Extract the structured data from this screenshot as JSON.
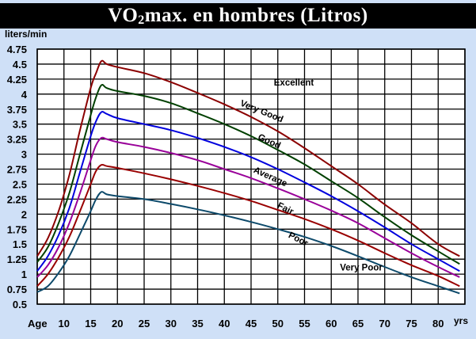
{
  "title": {
    "prefix": "VO",
    "subscript": "2",
    "suffix": "max. en hombres (Litros)"
  },
  "chart_data": {
    "type": "line",
    "title": "VO2max. en hombres (Litros)",
    "ylabel": "liters/min",
    "xlabel_left": "Age",
    "xlabel_right": "yrs",
    "ylim": [
      0.5,
      4.75
    ],
    "xlim": [
      5,
      85
    ],
    "grid": true,
    "x_ticks": [
      10,
      15,
      20,
      25,
      30,
      35,
      40,
      45,
      50,
      55,
      60,
      65,
      70,
      75,
      80
    ],
    "y_ticks": [
      0.5,
      0.75,
      1,
      1.25,
      1.5,
      1.75,
      2,
      2.25,
      2.5,
      2.75,
      3,
      3.25,
      3.5,
      3.75,
      4,
      4.25,
      4.5,
      4.75
    ],
    "y_tick_labels": [
      "0.5",
      "0.75",
      "1",
      "1.25",
      "1.5",
      "1.75",
      "2",
      "2.25",
      "2.5",
      "2.75",
      "3",
      "3.25",
      "3.5",
      "3.75",
      "4",
      "4.25",
      "4.5",
      "4.75"
    ],
    "series": [
      {
        "name": "Excellent",
        "color": "#8b0000",
        "x": [
          5,
          7,
          9,
          11,
          13,
          15,
          16,
          17,
          18,
          20,
          25,
          30,
          35,
          40,
          45,
          50,
          55,
          60,
          65,
          70,
          75,
          80,
          84
        ],
        "y": [
          1.3,
          1.6,
          2.05,
          2.65,
          3.4,
          4.1,
          4.35,
          4.55,
          4.5,
          4.45,
          4.35,
          4.2,
          4.02,
          3.83,
          3.62,
          3.38,
          3.1,
          2.8,
          2.5,
          2.16,
          1.85,
          1.5,
          1.3
        ]
      },
      {
        "name": "Very Good",
        "color": "#004000",
        "x": [
          5,
          7,
          9,
          11,
          13,
          15,
          16,
          17,
          18,
          20,
          25,
          30,
          35,
          40,
          45,
          50,
          55,
          60,
          65,
          70,
          75,
          80,
          84
        ],
        "y": [
          1.2,
          1.45,
          1.85,
          2.35,
          3.0,
          3.65,
          3.95,
          4.15,
          4.1,
          4.05,
          3.97,
          3.85,
          3.68,
          3.5,
          3.3,
          3.07,
          2.83,
          2.55,
          2.27,
          1.95,
          1.65,
          1.38,
          1.17
        ]
      },
      {
        "name": "Good",
        "color": "#0000dd",
        "x": [
          5,
          7,
          9,
          11,
          13,
          15,
          16,
          17,
          18,
          20,
          25,
          30,
          35,
          40,
          45,
          50,
          55,
          60,
          65,
          70,
          75,
          80,
          84
        ],
        "y": [
          1.05,
          1.3,
          1.65,
          2.1,
          2.7,
          3.3,
          3.55,
          3.7,
          3.67,
          3.6,
          3.5,
          3.4,
          3.27,
          3.12,
          2.95,
          2.75,
          2.53,
          2.3,
          2.05,
          1.78,
          1.5,
          1.25,
          1.05
        ]
      },
      {
        "name": "Average",
        "color": "#990099",
        "x": [
          5,
          7,
          9,
          11,
          13,
          15,
          16,
          17,
          18,
          20,
          25,
          30,
          35,
          40,
          45,
          50,
          55,
          60,
          65,
          70,
          75,
          80,
          84
        ],
        "y": [
          0.95,
          1.15,
          1.45,
          1.85,
          2.35,
          2.9,
          3.15,
          3.27,
          3.25,
          3.2,
          3.12,
          3.02,
          2.9,
          2.75,
          2.6,
          2.43,
          2.25,
          2.06,
          1.85,
          1.6,
          1.35,
          1.12,
          0.95
        ]
      },
      {
        "name": "Fair",
        "color": "#990000",
        "x": [
          5,
          7,
          9,
          11,
          13,
          15,
          16,
          17,
          18,
          20,
          25,
          30,
          35,
          40,
          45,
          50,
          55,
          60,
          65,
          70,
          75,
          80,
          84
        ],
        "y": [
          0.8,
          1.0,
          1.28,
          1.62,
          2.05,
          2.5,
          2.72,
          2.82,
          2.8,
          2.77,
          2.68,
          2.58,
          2.47,
          2.35,
          2.22,
          2.07,
          1.92,
          1.75,
          1.56,
          1.35,
          1.15,
          0.97,
          0.8
        ]
      },
      {
        "name": "Poor",
        "color": "#0d4a6b",
        "x": [
          5,
          7,
          9,
          11,
          13,
          15,
          16,
          17,
          18,
          20,
          25,
          30,
          35,
          40,
          45,
          50,
          55,
          60,
          65,
          70,
          75,
          80,
          84
        ],
        "y": [
          0.7,
          0.8,
          1.02,
          1.3,
          1.67,
          2.05,
          2.25,
          2.37,
          2.33,
          2.3,
          2.25,
          2.17,
          2.08,
          1.98,
          1.87,
          1.75,
          1.62,
          1.47,
          1.3,
          1.12,
          0.95,
          0.8,
          0.68
        ]
      }
    ],
    "annotations": [
      {
        "text": "Excellent",
        "x": 53,
        "y": 4.14,
        "rotate": 0
      },
      {
        "text": "Very Good",
        "x": 46.8,
        "y": 3.67,
        "rotate": 22
      },
      {
        "text": "Good",
        "x": 48.2,
        "y": 3.17,
        "rotate": 24
      },
      {
        "text": "Average",
        "x": 48.4,
        "y": 2.58,
        "rotate": 24
      },
      {
        "text": "Fair",
        "x": 51.2,
        "y": 2.05,
        "rotate": 26
      },
      {
        "text": "Poor",
        "x": 53.6,
        "y": 1.54,
        "rotate": 27
      },
      {
        "text": "Very Poor",
        "x": 65.6,
        "y": 1.06,
        "rotate": 0
      }
    ]
  }
}
